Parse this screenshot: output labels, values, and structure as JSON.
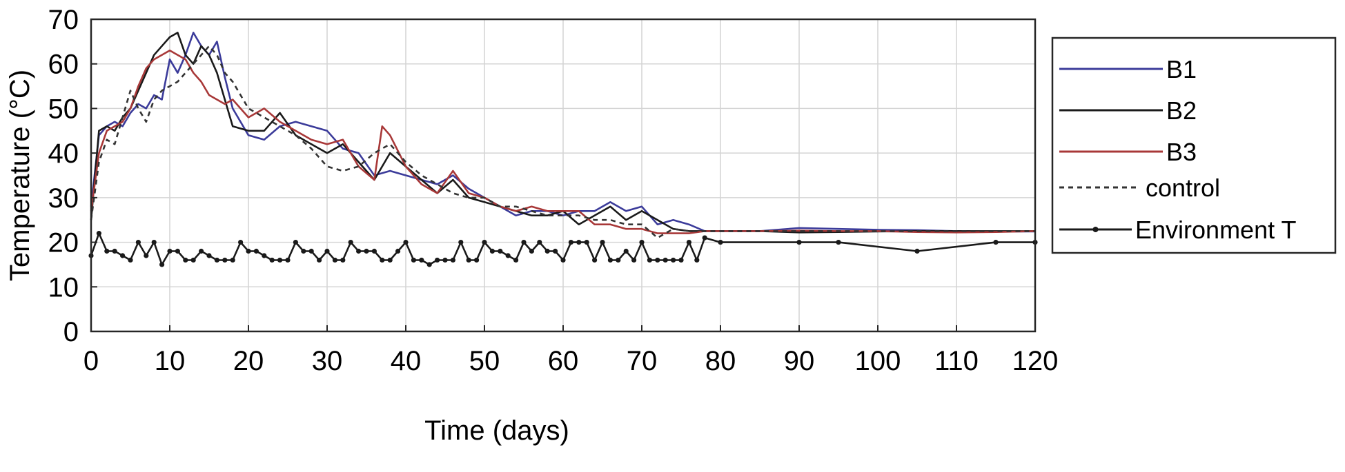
{
  "chart_data": {
    "type": "line",
    "xlabel": "Time (days)",
    "ylabel": "Temperature (°C)",
    "xlim": [
      0,
      120
    ],
    "ylim": [
      0,
      70
    ],
    "xticks": [
      0,
      10,
      20,
      30,
      40,
      50,
      60,
      70,
      80,
      90,
      100,
      110,
      120
    ],
    "yticks": [
      0,
      10,
      20,
      30,
      40,
      50,
      60,
      70
    ],
    "grid": true,
    "legend_position": "outside-right",
    "series": [
      {
        "name": "B1",
        "color": "#3b3b9a",
        "style": "solid",
        "x": [
          0,
          1,
          2,
          3,
          4,
          5,
          6,
          7,
          8,
          9,
          10,
          11,
          12,
          13,
          14,
          15,
          16,
          17,
          18,
          20,
          22,
          24,
          26,
          28,
          30,
          32,
          34,
          36,
          38,
          40,
          42,
          44,
          46,
          48,
          50,
          52,
          54,
          56,
          58,
          60,
          62,
          64,
          66,
          68,
          70,
          72,
          74,
          76,
          78,
          80,
          85,
          90,
          95,
          100,
          105,
          110,
          115,
          120
        ],
        "y": [
          28,
          44,
          46,
          47,
          46,
          49,
          51,
          50,
          53,
          52,
          61,
          58,
          62,
          67,
          64,
          62,
          65,
          57,
          50,
          44,
          43,
          46,
          47,
          46,
          45,
          41,
          40,
          35,
          36,
          35,
          34,
          33,
          35,
          32,
          30,
          28,
          26,
          27,
          27,
          26,
          27,
          27,
          29,
          27,
          28,
          24,
          25,
          24,
          22.5,
          22.5,
          22.5,
          23.2,
          23,
          22.8,
          22.7,
          22.5,
          22.4,
          22.4
        ]
      },
      {
        "name": "B2",
        "color": "#1a1a1a",
        "style": "solid",
        "x": [
          0,
          1,
          2,
          3,
          4,
          5,
          6,
          7,
          8,
          9,
          10,
          11,
          12,
          13,
          14,
          15,
          16,
          17,
          18,
          20,
          22,
          24,
          26,
          28,
          30,
          32,
          34,
          36,
          38,
          40,
          42,
          44,
          46,
          48,
          50,
          52,
          54,
          56,
          58,
          60,
          62,
          64,
          66,
          68,
          70,
          72,
          74,
          76,
          78,
          80,
          85,
          90,
          95,
          100,
          105,
          110,
          115,
          120
        ],
        "y": [
          25,
          45,
          46,
          45,
          48,
          50,
          54,
          58,
          62,
          64,
          66,
          67,
          62,
          60,
          64,
          62,
          58,
          52,
          46,
          45,
          45,
          49,
          44,
          42,
          40,
          42,
          38,
          34,
          40,
          37,
          34,
          31,
          34,
          30,
          29,
          28,
          27,
          26,
          26,
          27,
          24,
          26,
          28,
          25,
          27,
          25,
          23,
          22.5,
          22.5,
          22.5,
          22.5,
          22.2,
          22.3,
          22.4,
          22.5,
          22.5,
          22.5,
          22.5
        ]
      },
      {
        "name": "B3",
        "color": "#a83838",
        "style": "solid",
        "x": [
          0,
          1,
          2,
          3,
          4,
          5,
          6,
          7,
          8,
          9,
          10,
          11,
          12,
          13,
          14,
          15,
          16,
          17,
          18,
          20,
          22,
          24,
          26,
          28,
          30,
          32,
          34,
          36,
          37,
          38,
          40,
          42,
          44,
          46,
          48,
          50,
          52,
          54,
          56,
          58,
          60,
          62,
          64,
          66,
          68,
          70,
          72,
          74,
          76,
          78,
          80,
          85,
          90,
          95,
          100,
          105,
          110,
          115,
          120
        ],
        "y": [
          27,
          40,
          45,
          46,
          47,
          50,
          55,
          59,
          61,
          62,
          63,
          62,
          61,
          58,
          56,
          53,
          52,
          51,
          52,
          48,
          50,
          47,
          45,
          43,
          42,
          43,
          37,
          34,
          46,
          44,
          37,
          33,
          31,
          36,
          31,
          30,
          28,
          27,
          28,
          27,
          27,
          27,
          24,
          24,
          23,
          23,
          22,
          22,
          22,
          22.5,
          22.5,
          22.5,
          22.6,
          22.5,
          22.5,
          22.3,
          22.2,
          22.3,
          22.5
        ]
      },
      {
        "name": "control",
        "color": "#333333",
        "style": "dashed",
        "x": [
          0,
          1,
          2,
          3,
          4,
          5,
          6,
          7,
          8,
          9,
          10,
          11,
          12,
          13,
          14,
          15,
          16,
          17,
          18,
          20,
          22,
          24,
          26,
          28,
          30,
          32,
          34,
          36,
          38,
          40,
          42,
          44,
          46,
          48,
          50,
          52,
          54,
          56,
          58,
          60,
          62,
          64,
          66,
          68,
          70,
          72,
          74,
          76,
          78,
          80,
          85,
          90,
          95,
          100,
          105,
          110,
          115,
          120
        ],
        "y": [
          25,
          38,
          43,
          42,
          48,
          54,
          50,
          47,
          52,
          54,
          55,
          56,
          58,
          60,
          62,
          64,
          62,
          58,
          56,
          50,
          48,
          46,
          44,
          41,
          37,
          36,
          37,
          40,
          42,
          38,
          35,
          33,
          31,
          30,
          30,
          28,
          28,
          27,
          26,
          26,
          26,
          25,
          25,
          24,
          24,
          21,
          23,
          22.5,
          22.5,
          22.5,
          22.5,
          22.5,
          22.5,
          22.5,
          22.5,
          22.5,
          22.5,
          22.5
        ]
      },
      {
        "name": "Environment T",
        "color": "#1a1a1a",
        "style": "solid-markers",
        "x": [
          0,
          1,
          2,
          3,
          4,
          5,
          6,
          7,
          8,
          9,
          10,
          11,
          12,
          13,
          14,
          15,
          16,
          17,
          18,
          19,
          20,
          21,
          22,
          23,
          24,
          25,
          26,
          27,
          28,
          29,
          30,
          31,
          32,
          33,
          34,
          35,
          36,
          37,
          38,
          39,
          40,
          41,
          42,
          43,
          44,
          45,
          46,
          47,
          48,
          49,
          50,
          51,
          52,
          53,
          54,
          55,
          56,
          57,
          58,
          59,
          60,
          61,
          62,
          63,
          64,
          65,
          66,
          67,
          68,
          69,
          70,
          71,
          72,
          73,
          74,
          75,
          76,
          77,
          78,
          80,
          90,
          95,
          105,
          115,
          120
        ],
        "y": [
          17,
          22,
          18,
          18,
          17,
          16,
          20,
          17,
          20,
          15,
          18,
          18,
          16,
          16,
          18,
          17,
          16,
          16,
          16,
          20,
          18,
          18,
          17,
          16,
          16,
          16,
          20,
          18,
          18,
          16,
          18,
          16,
          16,
          20,
          18,
          18,
          18,
          16,
          16,
          18,
          20,
          16,
          16,
          15,
          16,
          16,
          16,
          20,
          16,
          16,
          20,
          18,
          18,
          17,
          16,
          20,
          18,
          20,
          18,
          18,
          16,
          20,
          20,
          20,
          16,
          20,
          16,
          16,
          18,
          16,
          20,
          16,
          16,
          16,
          16,
          16,
          20,
          16,
          21,
          20,
          20,
          20,
          18,
          20,
          20
        ]
      }
    ]
  }
}
